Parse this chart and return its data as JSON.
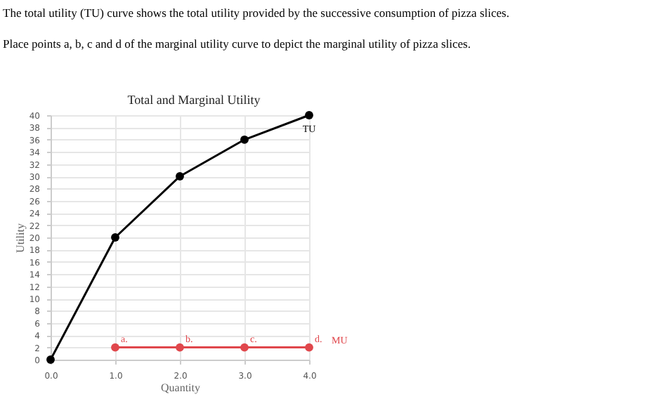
{
  "chart_data": {
    "type": "line",
    "title": "Total and Marginal Utility",
    "xlabel": "Quantity",
    "ylabel": "Utility",
    "annotations": [
      "The total utility (TU) curve shows the total utility provided by the successive consumption of pizza slices.",
      "Place points a, b, c and d of the marginal utility curve to depict the marginal utility of pizza slices.",
      {
        "text": "a.",
        "x": 1,
        "y": 2
      },
      {
        "text": "b.",
        "x": 2,
        "y": 2
      },
      {
        "text": "c.",
        "x": 3,
        "y": 2
      },
      {
        "text": "d.",
        "x": 4,
        "y": 2
      }
    ],
    "series": [
      {
        "name": "TU",
        "color": "#000000",
        "x": [
          0,
          1,
          2,
          3,
          4
        ],
        "values": [
          0,
          20,
          30,
          36,
          40
        ]
      },
      {
        "name": "MU",
        "color": "#e0474c",
        "x": [
          1,
          2,
          3,
          4
        ],
        "values": [
          2,
          2,
          2,
          2
        ]
      }
    ],
    "xlim": [
      0,
      4
    ],
    "xticks": [
      {
        "value": 0,
        "label": "0.0"
      },
      {
        "value": 1,
        "label": "1.0"
      },
      {
        "value": 2,
        "label": "2.0"
      },
      {
        "value": 3,
        "label": "3.0"
      },
      {
        "value": 4,
        "label": "4.0"
      }
    ],
    "ylim": [
      0,
      40
    ],
    "yticks": [
      0,
      2,
      4,
      6,
      8,
      10,
      12,
      14,
      16,
      18,
      20,
      22,
      24,
      26,
      28,
      30,
      32,
      34,
      36,
      38,
      40
    ],
    "grid": true,
    "marker": "circle",
    "line_style": "solid"
  }
}
